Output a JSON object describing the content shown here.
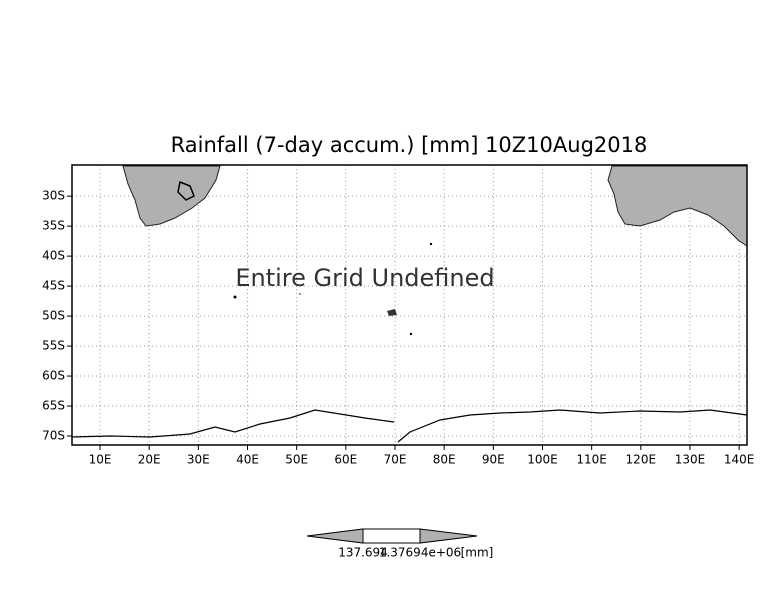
{
  "header": {
    "title": "Rainfall (7-day accum.) [mm] 10Z10Aug2018"
  },
  "map": {
    "annotation": "Entire Grid Undefined",
    "lon_range": [
      4.3,
      141.6
    ],
    "lat_range": [
      -24.8,
      -71.5
    ],
    "lon_ticks": [
      {
        "value": 10,
        "label": "10E"
      },
      {
        "value": 20,
        "label": "20E"
      },
      {
        "value": 30,
        "label": "30E"
      },
      {
        "value": 40,
        "label": "40E"
      },
      {
        "value": 50,
        "label": "50E"
      },
      {
        "value": 60,
        "label": "60E"
      },
      {
        "value": 70,
        "label": "70E"
      },
      {
        "value": 80,
        "label": "80E"
      },
      {
        "value": 90,
        "label": "90E"
      },
      {
        "value": 100,
        "label": "100E"
      },
      {
        "value": 110,
        "label": "110E"
      },
      {
        "value": 120,
        "label": "120E"
      },
      {
        "value": 130,
        "label": "130E"
      },
      {
        "value": 140,
        "label": "140E"
      }
    ],
    "lat_ticks": [
      {
        "value": -30,
        "label": "30S"
      },
      {
        "value": -35,
        "label": "35S"
      },
      {
        "value": -40,
        "label": "40S"
      },
      {
        "value": -45,
        "label": "45S"
      },
      {
        "value": -50,
        "label": "50S"
      },
      {
        "value": -55,
        "label": "55S"
      },
      {
        "value": -60,
        "label": "60S"
      },
      {
        "value": -65,
        "label": "65S"
      },
      {
        "value": -70,
        "label": "70S"
      }
    ],
    "grid": true
  },
  "colorbar": {
    "labels": [
      "137.694",
      "1.37694e+06"
    ],
    "unit": "[mm]"
  }
}
